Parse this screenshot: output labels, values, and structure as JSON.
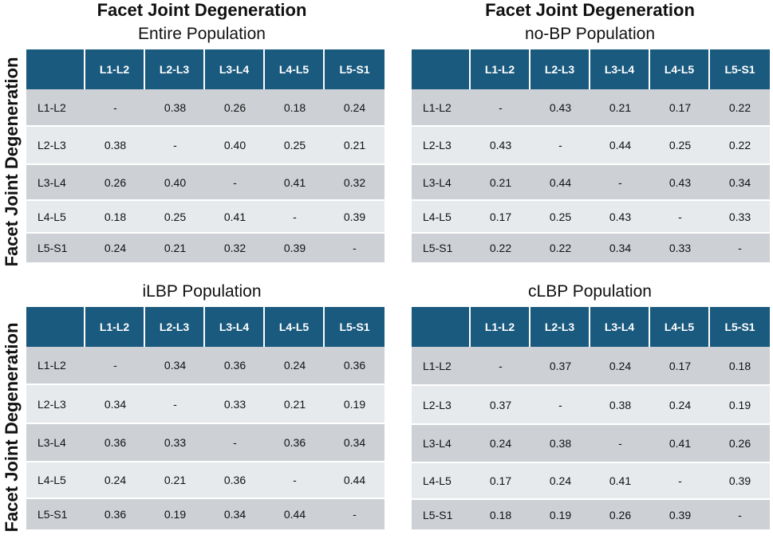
{
  "chart_data": [
    {
      "type": "table",
      "title": "Facet Joint Degeneration",
      "subtitle": "Entire Population",
      "ylabel": "Facet Joint Degeneration",
      "columns": [
        "L1-L2",
        "L2-L3",
        "L3-L4",
        "L4-L5",
        "L5-S1"
      ],
      "rows": [
        {
          "label": "L1-L2",
          "values": [
            "-",
            "0.38",
            "0.26",
            "0.18",
            "0.24"
          ]
        },
        {
          "label": "L2-L3",
          "values": [
            "0.38",
            "-",
            "0.40",
            "0.25",
            "0.21"
          ]
        },
        {
          "label": "L3-L4",
          "values": [
            "0.26",
            "0.40",
            "-",
            "0.41",
            "0.32"
          ]
        },
        {
          "label": "L4-L5",
          "values": [
            "0.18",
            "0.25",
            "0.41",
            "-",
            "0.39"
          ]
        },
        {
          "label": "L5-S1",
          "values": [
            "0.24",
            "0.21",
            "0.32",
            "0.39",
            "-"
          ]
        }
      ]
    },
    {
      "type": "table",
      "title": "Facet Joint Degeneration",
      "subtitle": "no-BP Population",
      "columns": [
        "L1-L2",
        "L2-L3",
        "L3-L4",
        "L4-L5",
        "L5-S1"
      ],
      "rows": [
        {
          "label": "L1-L2",
          "values": [
            "-",
            "0.43",
            "0.21",
            "0.17",
            "0.22"
          ]
        },
        {
          "label": "L2-L3",
          "values": [
            "0.43",
            "-",
            "0.44",
            "0.25",
            "0.22"
          ]
        },
        {
          "label": "L3-L4",
          "values": [
            "0.21",
            "0.44",
            "-",
            "0.43",
            "0.34"
          ]
        },
        {
          "label": "L4-L5",
          "values": [
            "0.17",
            "0.25",
            "0.43",
            "-",
            "0.33"
          ]
        },
        {
          "label": "L5-S1",
          "values": [
            "0.22",
            "0.22",
            "0.34",
            "0.33",
            "-"
          ]
        }
      ]
    },
    {
      "type": "table",
      "subtitle": "iLBP Population",
      "ylabel": "Facet Joint Degeneration",
      "columns": [
        "L1-L2",
        "L2-L3",
        "L3-L4",
        "L4-L5",
        "L5-S1"
      ],
      "rows": [
        {
          "label": "L1-L2",
          "values": [
            "-",
            "0.34",
            "0.36",
            "0.24",
            "0.36"
          ]
        },
        {
          "label": "L2-L3",
          "values": [
            "0.34",
            "-",
            "0.33",
            "0.21",
            "0.19"
          ]
        },
        {
          "label": "L3-L4",
          "values": [
            "0.36",
            "0.33",
            "-",
            "0.36",
            "0.34"
          ]
        },
        {
          "label": "L4-L5",
          "values": [
            "0.24",
            "0.21",
            "0.36",
            "-",
            "0.44"
          ]
        },
        {
          "label": "L5-S1",
          "values": [
            "0.36",
            "0.19",
            "0.34",
            "0.44",
            "-"
          ]
        }
      ]
    },
    {
      "type": "table",
      "subtitle": "cLBP Population",
      "columns": [
        "L1-L2",
        "L2-L3",
        "L3-L4",
        "L4-L5",
        "L5-S1"
      ],
      "rows": [
        {
          "label": "L1-L2",
          "values": [
            "-",
            "0.37",
            "0.24",
            "0.17",
            "0.18"
          ]
        },
        {
          "label": "L2-L3",
          "values": [
            "0.37",
            "-",
            "0.38",
            "0.24",
            "0.19"
          ]
        },
        {
          "label": "L3-L4",
          "values": [
            "0.24",
            "0.38",
            "-",
            "0.41",
            "0.26"
          ]
        },
        {
          "label": "L4-L5",
          "values": [
            "0.17",
            "0.24",
            "0.41",
            "-",
            "0.39"
          ]
        },
        {
          "label": "L5-S1",
          "values": [
            "0.18",
            "0.19",
            "0.26",
            "0.39",
            "-"
          ]
        }
      ]
    }
  ]
}
